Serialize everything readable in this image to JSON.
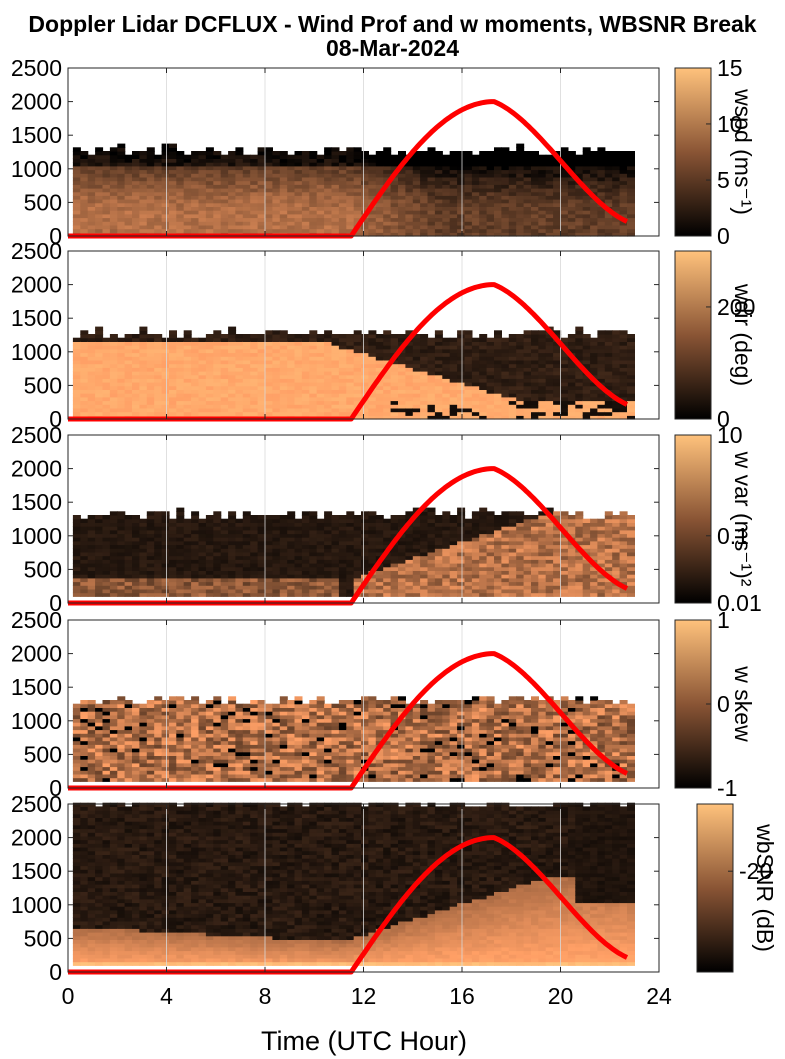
{
  "figure": {
    "title_line1": "Doppler Lidar DCFLUX - Wind Prof and w moments, WBSNR Break",
    "title_line2": "08-Mar-2024",
    "xlabel": "Time (UTC Hour)",
    "x_ticks": [
      "0",
      "4",
      "8",
      "12",
      "16",
      "20",
      "24"
    ],
    "y_ticks": [
      "0",
      "500",
      "1000",
      "1500",
      "2000",
      "2500"
    ]
  },
  "colors": {
    "colormap": "copper",
    "overlay_line": "#ff0000"
  },
  "chart_data": [
    {
      "type": "heatmap",
      "name": "wspd panel",
      "xlim": [
        0,
        24
      ],
      "ylim": [
        0,
        2500
      ],
      "colorbar": {
        "label": "wspd (ms⁻¹)",
        "ticks": [
          "0",
          "5",
          "10",
          "15"
        ],
        "range": [
          0,
          15
        ]
      },
      "data_extent_hours": [
        0.2,
        22.9
      ],
      "approx_top_height_m": 1250,
      "overlay_curve": {
        "zero_until_hour": 11.5,
        "peak_hour": 17.3,
        "peak_value": 2000,
        "end_hour": 22.8,
        "end_value": 200
      }
    },
    {
      "type": "heatmap",
      "name": "wdir panel",
      "xlim": [
        0,
        24
      ],
      "ylim": [
        0,
        2500
      ],
      "colorbar": {
        "label": "wdir (deg)",
        "ticks": [
          "0",
          "200"
        ],
        "range": [
          0,
          300
        ]
      },
      "data_extent_hours": [
        0.2,
        22.9
      ],
      "approx_top_height_m": 1250,
      "overlay_curve": {
        "zero_until_hour": 11.5,
        "peak_hour": 17.3,
        "peak_value": 2000,
        "end_hour": 22.8,
        "end_value": 200
      }
    },
    {
      "type": "heatmap",
      "name": "w var panel",
      "xlim": [
        0,
        24
      ],
      "ylim": [
        0,
        2500
      ],
      "colorbar": {
        "label": "w var (ms⁻¹)²",
        "ticks": [
          "0.01",
          "0.1",
          "10"
        ],
        "scale": "log"
      },
      "data_extent_hours": [
        0.2,
        22.9
      ],
      "approx_top_height_m": 1300,
      "overlay_curve": {
        "zero_until_hour": 11.5,
        "peak_hour": 17.3,
        "peak_value": 2000,
        "end_hour": 22.8,
        "end_value": 200
      }
    },
    {
      "type": "heatmap",
      "name": "w skew panel",
      "xlim": [
        0,
        24
      ],
      "ylim": [
        0,
        2500
      ],
      "colorbar": {
        "label": "w skew",
        "ticks": [
          "-1",
          "0",
          "1"
        ],
        "range": [
          -1,
          1
        ]
      },
      "data_extent_hours": [
        0.2,
        22.9
      ],
      "approx_top_height_m": 1300,
      "overlay_curve": {
        "zero_until_hour": 11.5,
        "peak_hour": 17.3,
        "peak_value": 2000,
        "end_hour": 22.8,
        "end_value": 200
      }
    },
    {
      "type": "heatmap",
      "name": "wbSNR panel",
      "xlim": [
        0,
        24
      ],
      "ylim": [
        0,
        2500
      ],
      "colorbar": {
        "label": "wbSNR (dB)",
        "ticks": [
          "-20"
        ],
        "range": [
          -32,
          -12
        ]
      },
      "data_extent_hours": [
        0.2,
        22.9
      ],
      "approx_top_height_m": 2500,
      "overlay_curve": {
        "zero_until_hour": 11.5,
        "peak_hour": 17.3,
        "peak_value": 2000,
        "end_hour": 22.8,
        "end_value": 200
      }
    }
  ]
}
